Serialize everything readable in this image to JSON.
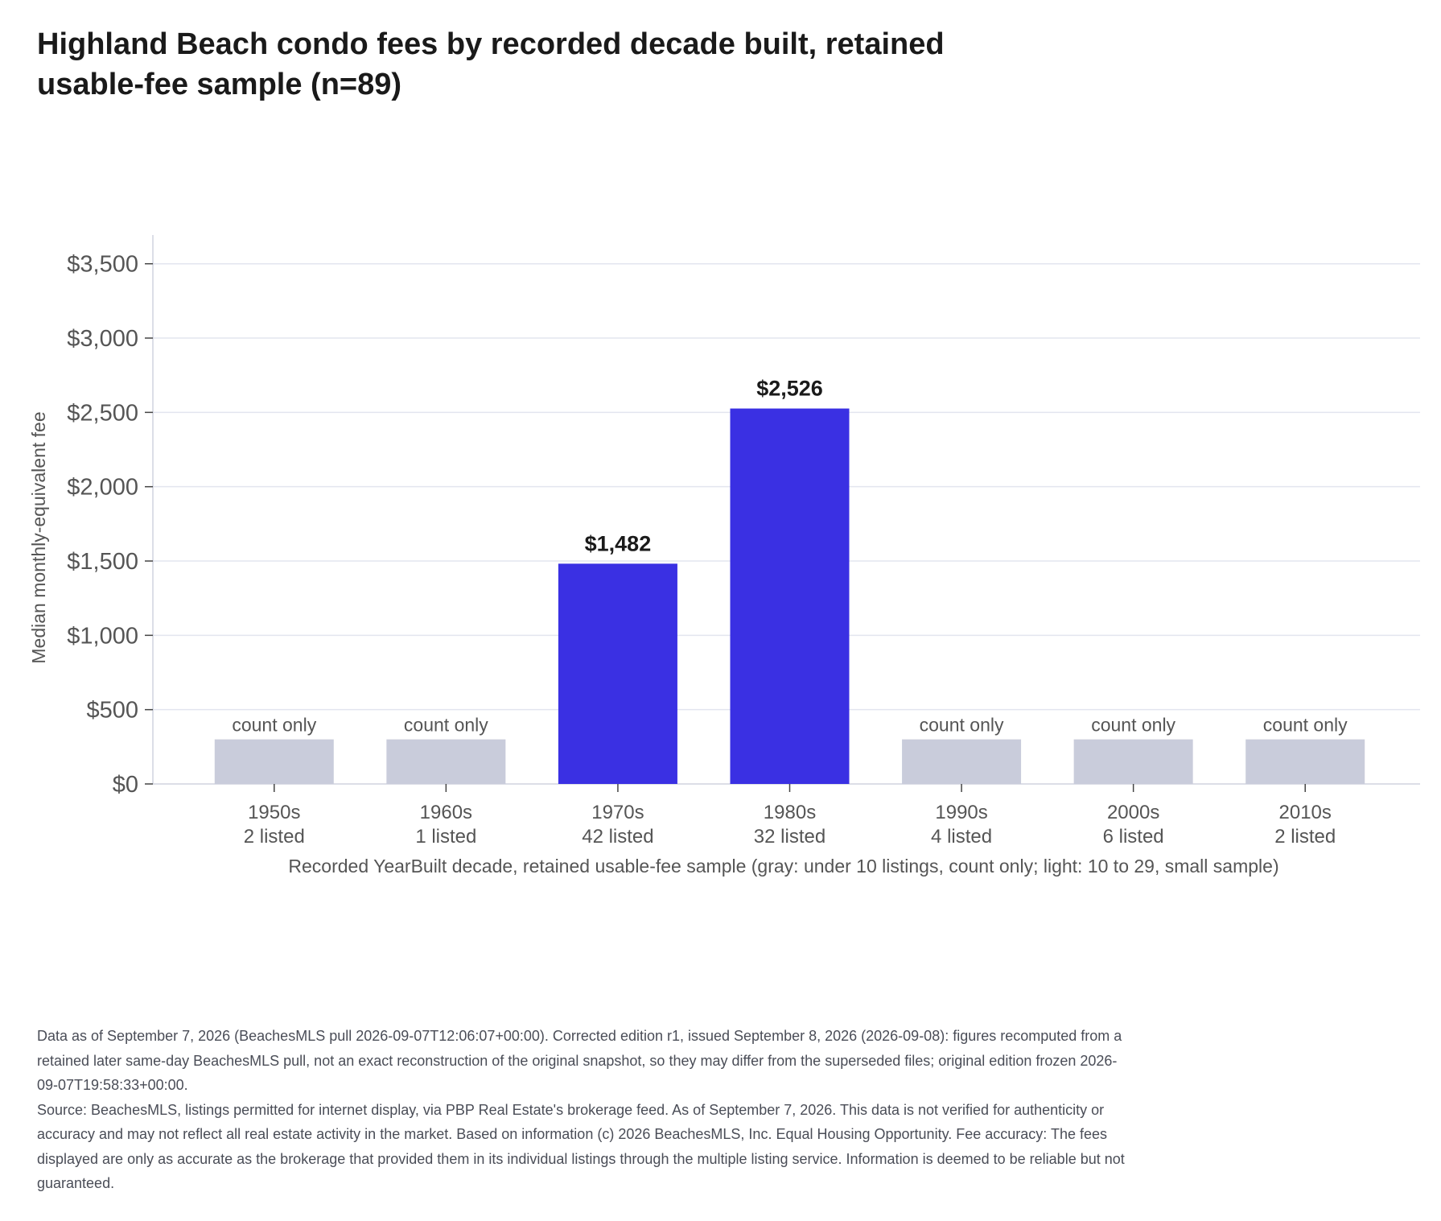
{
  "chart_data": {
    "type": "bar",
    "title_lines": [
      "Highland Beach condo fees by recorded decade built, retained",
      "usable-fee sample (n=89)"
    ],
    "ylabel": "Median monthly-equivalent fee",
    "xlabel": "Recorded YearBuilt decade, retained usable-fee sample (gray: under 10 listings, count only; light: 10 to 29, small sample)",
    "ylim": [
      0,
      3650
    ],
    "y_ticks": [
      0,
      500,
      1000,
      1500,
      2000,
      2500,
      3000,
      3500
    ],
    "y_tick_labels": [
      "$0",
      "$500",
      "$1,000",
      "$1,500",
      "$2,000",
      "$2,500",
      "$3,000",
      "$3,500"
    ],
    "grid": true,
    "bars": [
      {
        "category": "1950s",
        "count_label": "2 listed",
        "value": null,
        "placeholder_value": 300,
        "label": "count only",
        "color": "#c9ccdb"
      },
      {
        "category": "1960s",
        "count_label": "1 listed",
        "value": null,
        "placeholder_value": 300,
        "label": "count only",
        "color": "#c9ccdb"
      },
      {
        "category": "1970s",
        "count_label": "42 listed",
        "value": 1482,
        "label": "$1,482",
        "color": "#3a30e3"
      },
      {
        "category": "1980s",
        "count_label": "32 listed",
        "value": 2526,
        "label": "$2,526",
        "color": "#3a30e3"
      },
      {
        "category": "1990s",
        "count_label": "4 listed",
        "value": null,
        "placeholder_value": 300,
        "label": "count only",
        "color": "#c9ccdb"
      },
      {
        "category": "2000s",
        "count_label": "6 listed",
        "value": null,
        "placeholder_value": 300,
        "label": "count only",
        "color": "#c9ccdb"
      },
      {
        "category": "2010s",
        "count_label": "2 listed",
        "value": null,
        "placeholder_value": 300,
        "label": "count only",
        "color": "#c9ccdb"
      }
    ],
    "colors": {
      "full_sample": "#3a30e3",
      "count_only": "#c9ccdb",
      "grid": "#e3e5ef",
      "axis": "#d0d3df",
      "tick_text": "#555555",
      "value_label": "#1a1a1a",
      "count_only_label": "#555555"
    }
  },
  "footer": {
    "note": "Data as of September 7, 2026 (BeachesMLS pull 2026-09-07T12:06:07+00:00). Corrected edition r1, issued September 8, 2026 (2026-09-08): figures recomputed from a retained later same-day BeachesMLS pull, not an exact reconstruction of the original snapshot, so they may differ from the superseded files; original edition frozen 2026-09-07T19:58:33+00:00.",
    "source": "Source: BeachesMLS, listings permitted for internet display, via PBP Real Estate's brokerage feed. As of September 7, 2026. This data is not verified for authenticity or accuracy and may not reflect all real estate activity in the market. Based on information (c) 2026 BeachesMLS, Inc. Equal Housing Opportunity. Fee accuracy: The fees displayed are only as accurate as the brokerage that provided them in its individual listings through the multiple listing service. Information is deemed to be reliable but not guaranteed."
  }
}
